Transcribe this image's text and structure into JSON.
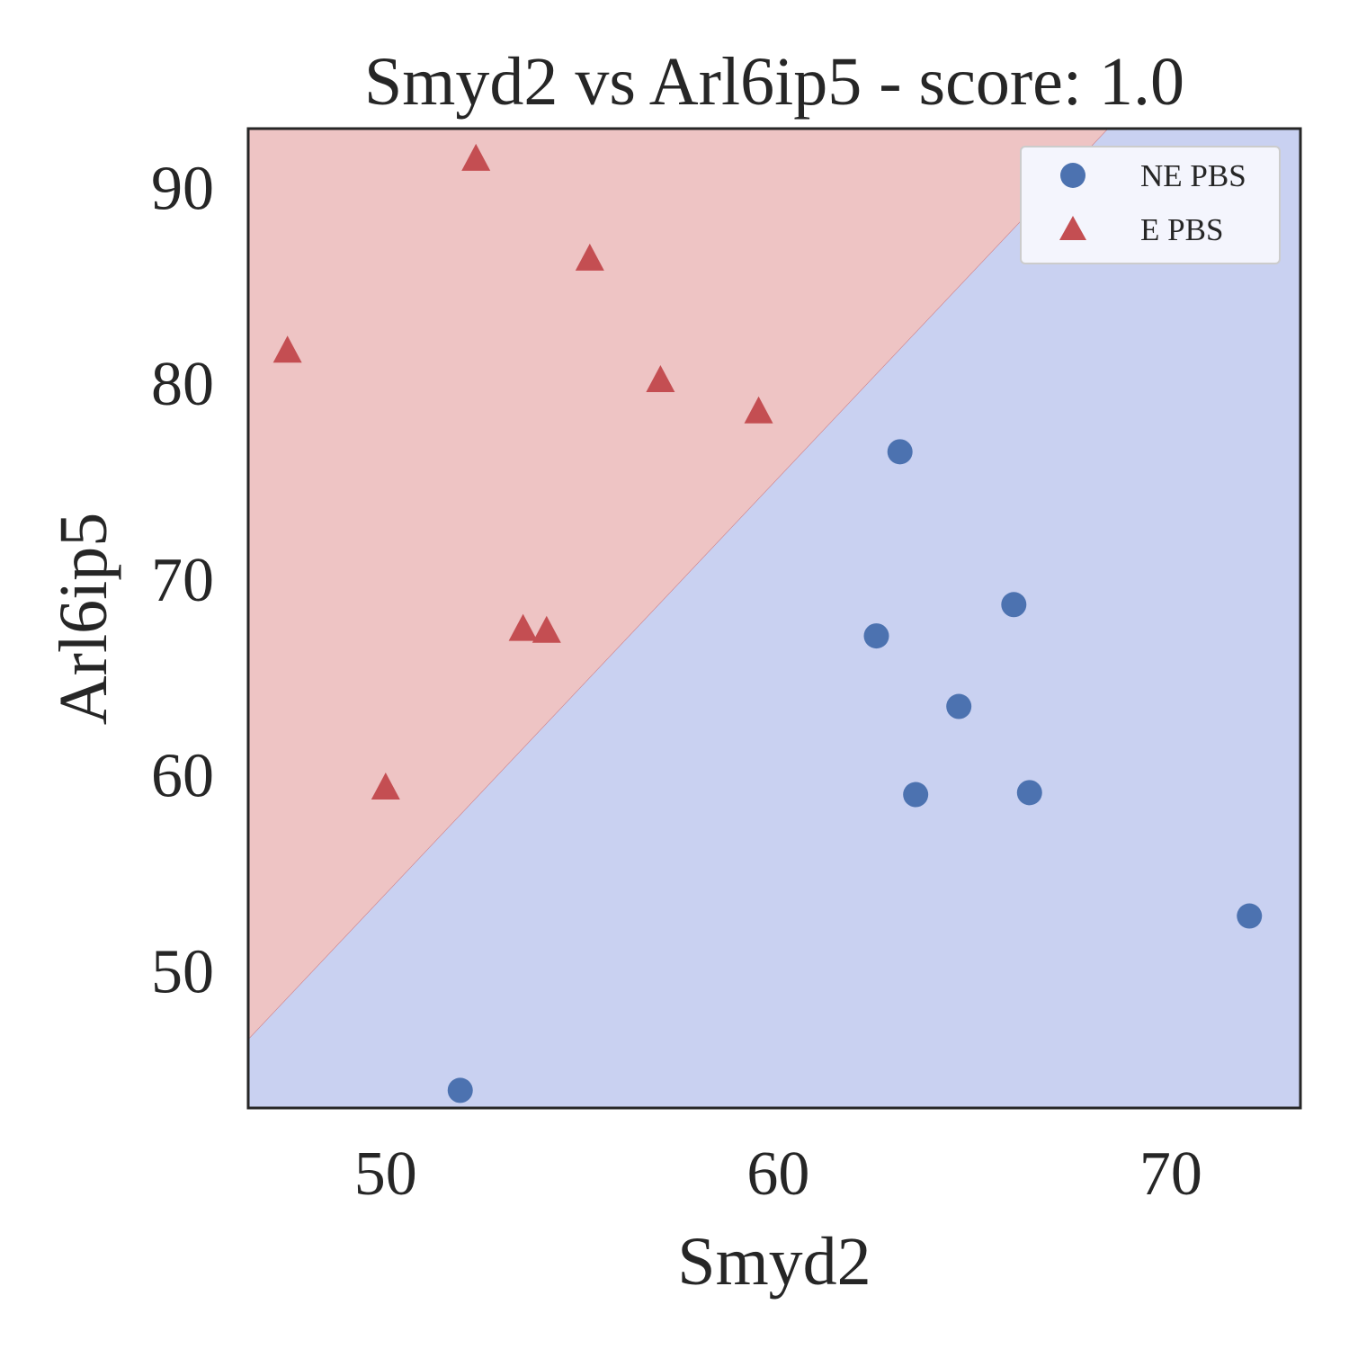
{
  "chart_data": {
    "type": "scatter",
    "title": "Smyd2 vs Arl6ip5 - score: 1.0",
    "xlabel": "Smyd2",
    "ylabel": "Arl6ip5",
    "xlim": [
      46.5,
      73.3
    ],
    "ylim": [
      43.0,
      93.0
    ],
    "xticks": [
      50,
      60,
      70
    ],
    "yticks": [
      50,
      60,
      70,
      80,
      90
    ],
    "grid": false,
    "legend_position": "top-right",
    "decision_boundary": {
      "points": [
        [
          46.5,
          46.5
        ],
        [
          68.4,
          93.0
        ]
      ],
      "upper_region_color": "#eec4c4",
      "lower_region_color": "#c9d1f1"
    },
    "series": [
      {
        "name": "NE PBS",
        "marker": "circle",
        "color": "#4c72b0",
        "points": [
          [
            51.9,
            43.9
          ],
          [
            63.1,
            76.5
          ],
          [
            62.5,
            67.1
          ],
          [
            66.0,
            68.7
          ],
          [
            64.6,
            63.5
          ],
          [
            63.5,
            59.0
          ],
          [
            66.4,
            59.1
          ],
          [
            72.0,
            52.8
          ]
        ]
      },
      {
        "name": "E PBS",
        "marker": "triangle",
        "color": "#c44e52",
        "points": [
          [
            47.5,
            81.6
          ],
          [
            52.3,
            91.4
          ],
          [
            55.2,
            86.3
          ],
          [
            57.0,
            80.1
          ],
          [
            59.5,
            78.5
          ],
          [
            53.5,
            67.4
          ],
          [
            54.1,
            67.3
          ],
          [
            50.0,
            59.3
          ]
        ]
      }
    ]
  }
}
